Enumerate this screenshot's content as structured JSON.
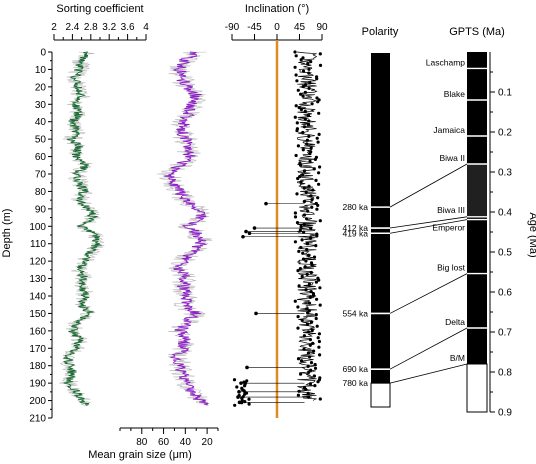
{
  "chart_data": [
    {
      "type": "line",
      "id": "grain-panel",
      "series": [
        {
          "name": "",
          "role": "sorting",
          "axis": "top",
          "color": "#1a6b32",
          "depth": [
            0,
            5,
            10,
            15,
            20,
            25,
            30,
            35,
            40,
            45,
            50,
            55,
            60,
            65,
            70,
            75,
            80,
            85,
            90,
            95,
            100,
            105,
            110,
            115,
            120,
            125,
            130,
            135,
            140,
            145,
            150,
            155,
            160,
            165,
            170,
            175,
            180,
            185,
            190,
            195,
            200,
            203
          ],
          "values": [
            2.75,
            2.6,
            2.55,
            2.45,
            2.5,
            2.6,
            2.45,
            2.55,
            2.4,
            2.5,
            2.4,
            2.55,
            2.45,
            2.7,
            2.5,
            2.55,
            2.65,
            2.55,
            2.75,
            2.85,
            2.6,
            2.9,
            2.95,
            2.8,
            2.65,
            2.55,
            2.65,
            2.6,
            2.7,
            2.6,
            2.8,
            2.5,
            2.4,
            2.55,
            2.45,
            2.3,
            2.35,
            2.4,
            2.3,
            2.5,
            2.6,
            2.75
          ]
        },
        {
          "name": "",
          "role": "mean-grain",
          "axis": "bottom",
          "color": "#8e1fc8",
          "depth": [
            0,
            5,
            10,
            15,
            20,
            25,
            30,
            35,
            40,
            45,
            50,
            55,
            60,
            65,
            70,
            75,
            80,
            85,
            90,
            95,
            100,
            105,
            110,
            115,
            120,
            125,
            130,
            135,
            140,
            145,
            150,
            155,
            160,
            165,
            170,
            175,
            180,
            185,
            190,
            195,
            200,
            203
          ],
          "values": [
            32,
            40,
            45,
            44,
            38,
            30,
            34,
            37,
            41,
            44,
            40,
            38,
            36,
            45,
            55,
            52,
            45,
            40,
            30,
            25,
            38,
            28,
            25,
            35,
            42,
            45,
            40,
            42,
            38,
            42,
            30,
            38,
            45,
            40,
            42,
            48,
            45,
            42,
            40,
            35,
            26,
            22
          ]
        }
      ],
      "axes": {
        "depth": {
          "label": "Depth (m)",
          "min": 0,
          "max": 210,
          "ticks": [
            0,
            10,
            20,
            30,
            40,
            50,
            60,
            70,
            80,
            90,
            100,
            110,
            120,
            130,
            140,
            150,
            160,
            170,
            180,
            190,
            200,
            210
          ]
        },
        "top": {
          "label": "Sorting coefficient",
          "min": 2,
          "max": 4,
          "ticks": [
            2,
            2.4,
            2.8,
            3.2,
            3.6,
            4
          ],
          "tick_labels": [
            "2",
            "2.4",
            "2.8",
            "3.2",
            "3.6",
            "4"
          ]
        },
        "bottom": {
          "label": "Mean grain size (μm)",
          "min": 10,
          "max": 100,
          "reversed": true,
          "ticks": [
            80,
            60,
            40,
            20
          ],
          "tick_labels": [
            "80",
            "60",
            "40",
            "20"
          ]
        }
      }
    },
    {
      "type": "scatter",
      "id": "inclination-panel",
      "x_axis": {
        "label": "Inclination (°)",
        "min": -90,
        "max": 90,
        "ticks": [
          -90,
          -45,
          0,
          45,
          90
        ],
        "tick_labels": [
          "-90",
          "-45",
          "0",
          "45",
          "90"
        ]
      },
      "zero_line_color": "#e08b22",
      "band_x_range": [
        40,
        80
      ],
      "reversals": [
        {
          "depth": 87,
          "x": -22
        },
        {
          "depth": 101,
          "x": -45
        },
        {
          "depth": 103,
          "x": -62
        },
        {
          "depth": 104,
          "x": -55
        },
        {
          "depth": 106,
          "x": -68
        },
        {
          "depth": 150,
          "x": -42
        },
        {
          "depth": 181,
          "x": -60
        },
        {
          "depth": 190,
          "x": -72
        },
        {
          "depth": 195,
          "x": -76
        },
        {
          "depth": 198,
          "x": -78
        },
        {
          "depth": 201,
          "x": -75
        }
      ]
    },
    {
      "type": "table",
      "id": "polarity-panel",
      "title": "Polarity",
      "boundaries": [
        {
          "label": "280 ka",
          "depth": 89
        },
        {
          "label": "412 ka",
          "depth": 101
        },
        {
          "label": "419 ka",
          "depth": 104
        },
        {
          "label": "554 ka",
          "depth": 150
        },
        {
          "label": "690 ka",
          "depth": 182
        },
        {
          "label": "780 ka",
          "depth": 190
        }
      ],
      "normal_fill": "#000000",
      "reversed_fill": "#ffffff"
    },
    {
      "type": "table",
      "id": "gpts-panel",
      "title": "GPTS (Ma)",
      "age_axis": {
        "label": "Age (Ma)",
        "min": 0,
        "max": 0.9,
        "ticks": [
          0.1,
          0.2,
          0.3,
          0.4,
          0.5,
          0.6,
          0.7,
          0.8,
          0.9
        ],
        "tick_labels": [
          "0.1",
          "0.2",
          "0.3",
          "0.4",
          "0.5",
          "0.6",
          "0.7",
          "0.8",
          "0.9"
        ]
      },
      "events": [
        {
          "label": "Laschamp",
          "age": 0.041
        },
        {
          "label": "Blake",
          "age": 0.12
        },
        {
          "label": "Jamaica",
          "age": 0.21
        },
        {
          "label": "Biwa II",
          "age": 0.28
        },
        {
          "label": "Biwa III",
          "age": 0.412
        },
        {
          "label": "Emperor",
          "age": 0.419
        },
        {
          "label": "Big lost",
          "age": 0.554
        },
        {
          "label": "Delta",
          "age": 0.69
        },
        {
          "label": "B/M",
          "age": 0.78
        }
      ],
      "gray_band": [
        0.28,
        0.412
      ],
      "normal_fill": "#000000",
      "gray_fill": "#202020",
      "reversed_fill": "#ffffff"
    }
  ]
}
